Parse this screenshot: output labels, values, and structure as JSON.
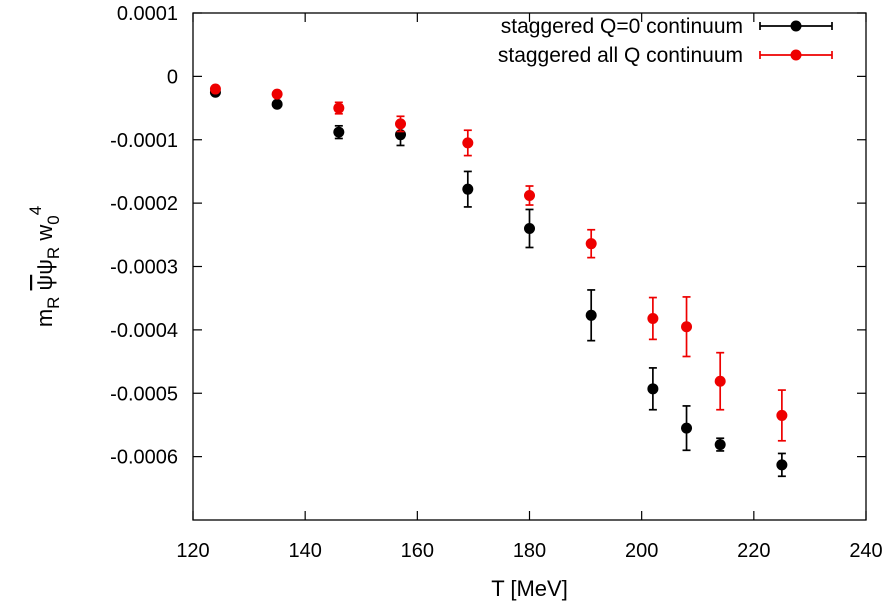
{
  "chart_data": {
    "type": "scatter",
    "title": "",
    "xlabel": "T [MeV]",
    "ylabel": {
      "m": "m",
      "m_sub": "R",
      "psibar": "ψ",
      "psi": "ψ",
      "psi_sub": "R",
      "w": "w",
      "w_sub": "0",
      "w_sup": "4"
    },
    "xlim": [
      120,
      240
    ],
    "ylim": [
      -0.0007,
      0.0001
    ],
    "x_ticks": [
      120,
      140,
      160,
      180,
      200,
      220,
      240
    ],
    "x_tick_labels": [
      "120",
      "140",
      "160",
      "180",
      "200",
      "220",
      "240"
    ],
    "y_ticks": [
      0.0001,
      0,
      -0.0001,
      -0.0002,
      -0.0003,
      -0.0004,
      -0.0005,
      -0.0006
    ],
    "y_tick_labels": [
      "0.0001",
      "0",
      "-0.0001",
      "-0.0002",
      "-0.0003",
      "-0.0004",
      "-0.0005",
      "-0.0006"
    ],
    "grid": false,
    "legend_position": "top-right",
    "series": [
      {
        "name": "staggered Q=0 continuum",
        "color": "#000000",
        "points": [
          {
            "x": 124,
            "y": -2.5e-05,
            "err": 4e-06
          },
          {
            "x": 135,
            "y": -4.4e-05,
            "err": 4e-06
          },
          {
            "x": 146,
            "y": -8.8e-05,
            "err": 1e-05
          },
          {
            "x": 157,
            "y": -9.2e-05,
            "err": 1.7e-05
          },
          {
            "x": 169,
            "y": -0.000178,
            "err": 2.8e-05
          },
          {
            "x": 180,
            "y": -0.00024,
            "err": 3e-05
          },
          {
            "x": 191,
            "y": -0.000377,
            "err": 4e-05
          },
          {
            "x": 202,
            "y": -0.000493,
            "err": 3.3e-05
          },
          {
            "x": 208,
            "y": -0.000555,
            "err": 3.5e-05
          },
          {
            "x": 214,
            "y": -0.000581,
            "err": 1e-05
          },
          {
            "x": 225,
            "y": -0.000613,
            "err": 1.8e-05
          }
        ]
      },
      {
        "name": "staggered all Q continuum",
        "color": "#ee0000",
        "points": [
          {
            "x": 124,
            "y": -2e-05,
            "err": 4e-06
          },
          {
            "x": 135,
            "y": -2.8e-05,
            "err": 4e-06
          },
          {
            "x": 146,
            "y": -5e-05,
            "err": 9e-06
          },
          {
            "x": 157,
            "y": -7.5e-05,
            "err": 1.2e-05
          },
          {
            "x": 169,
            "y": -0.000105,
            "err": 2e-05
          },
          {
            "x": 180,
            "y": -0.000188,
            "err": 1.5e-05
          },
          {
            "x": 191,
            "y": -0.000264,
            "err": 2.2e-05
          },
          {
            "x": 202,
            "y": -0.000382,
            "err": 3.3e-05
          },
          {
            "x": 208,
            "y": -0.000395,
            "err": 4.7e-05
          },
          {
            "x": 214,
            "y": -0.000481,
            "err": 4.5e-05
          },
          {
            "x": 225,
            "y": -0.000535,
            "err": 4e-05
          }
        ]
      }
    ]
  }
}
